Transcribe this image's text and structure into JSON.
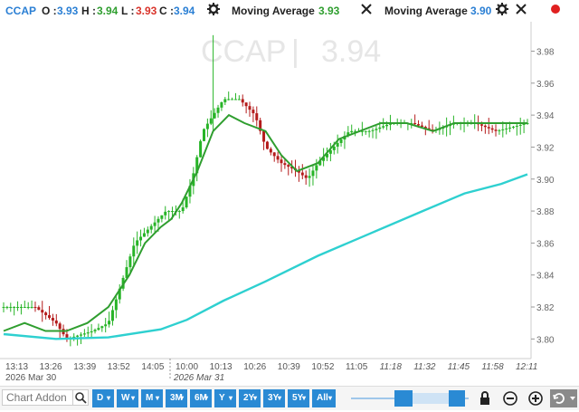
{
  "header": {
    "symbol": "CCAP",
    "open_label": "O :",
    "open_value": "3.93",
    "high_label": "H :",
    "high_value": "3.94",
    "low_label": "L :",
    "low_value": "3.93",
    "close_label": "C :",
    "close_value": "3.94",
    "indicator1_name": "Moving Average",
    "indicator1_value": "3.93",
    "indicator2_name": "Moving Average",
    "indicator2_value": "3.90"
  },
  "watermark": {
    "symbol": "CCAP",
    "separator": "|",
    "price": "3.94"
  },
  "chart_data": {
    "type": "candlestick",
    "y_ticks": [
      "3.98",
      "3.96",
      "3.94",
      "3.92",
      "3.90",
      "3.88",
      "3.86",
      "3.84",
      "3.82",
      "3.80"
    ],
    "ylim": [
      3.79,
      3.995
    ],
    "x_ticks": [
      "13:13",
      "13:26",
      "13:39",
      "13:52",
      "14:05",
      "10:00",
      "10:13",
      "10:26",
      "10:39",
      "10:52",
      "11:05",
      "11:18",
      "11:32",
      "11:45",
      "11:58",
      "12:11"
    ],
    "date_labels": [
      "2026 Mar 30",
      "2026 Mar 31"
    ],
    "price_path": [
      [
        0,
        3.82
      ],
      [
        0.06,
        3.82
      ],
      [
        0.1,
        3.81
      ],
      [
        0.12,
        3.8
      ],
      [
        0.17,
        3.805
      ],
      [
        0.2,
        3.81
      ],
      [
        0.22,
        3.83
      ],
      [
        0.25,
        3.86
      ],
      [
        0.28,
        3.87
      ],
      [
        0.31,
        3.88
      ],
      [
        0.34,
        3.88
      ],
      [
        0.36,
        3.9
      ],
      [
        0.38,
        3.93
      ],
      [
        0.4,
        3.94
      ],
      [
        0.42,
        3.95
      ],
      [
        0.45,
        3.95
      ],
      [
        0.48,
        3.94
      ],
      [
        0.5,
        3.92
      ],
      [
        0.53,
        3.91
      ],
      [
        0.56,
        3.905
      ],
      [
        0.58,
        3.9
      ],
      [
        0.6,
        3.91
      ],
      [
        0.63,
        3.92
      ],
      [
        0.66,
        3.93
      ],
      [
        0.7,
        3.93
      ],
      [
        0.74,
        3.935
      ],
      [
        0.78,
        3.935
      ],
      [
        0.82,
        3.93
      ],
      [
        0.86,
        3.935
      ],
      [
        0.9,
        3.935
      ],
      [
        0.94,
        3.93
      ],
      [
        1,
        3.935
      ]
    ],
    "ma_fast": [
      [
        0,
        3.805
      ],
      [
        0.04,
        3.81
      ],
      [
        0.08,
        3.805
      ],
      [
        0.12,
        3.805
      ],
      [
        0.16,
        3.81
      ],
      [
        0.2,
        3.82
      ],
      [
        0.24,
        3.84
      ],
      [
        0.27,
        3.86
      ],
      [
        0.3,
        3.87
      ],
      [
        0.32,
        3.875
      ],
      [
        0.34,
        3.885
      ],
      [
        0.37,
        3.905
      ],
      [
        0.4,
        3.93
      ],
      [
        0.43,
        3.94
      ],
      [
        0.46,
        3.935
      ],
      [
        0.5,
        3.93
      ],
      [
        0.53,
        3.915
      ],
      [
        0.56,
        3.905
      ],
      [
        0.6,
        3.91
      ],
      [
        0.64,
        3.925
      ],
      [
        0.68,
        3.93
      ],
      [
        0.72,
        3.935
      ],
      [
        0.77,
        3.935
      ],
      [
        0.82,
        3.93
      ],
      [
        0.86,
        3.935
      ],
      [
        0.9,
        3.935
      ],
      [
        0.94,
        3.935
      ],
      [
        1,
        3.935
      ]
    ],
    "ma_slow": [
      [
        0,
        3.803
      ],
      [
        0.1,
        3.8
      ],
      [
        0.2,
        3.801
      ],
      [
        0.3,
        3.806
      ],
      [
        0.35,
        3.812
      ],
      [
        0.42,
        3.824
      ],
      [
        0.5,
        3.836
      ],
      [
        0.6,
        3.852
      ],
      [
        0.7,
        3.866
      ],
      [
        0.8,
        3.88
      ],
      [
        0.88,
        3.891
      ],
      [
        0.95,
        3.897
      ],
      [
        1,
        3.903
      ]
    ]
  },
  "toolbar": {
    "addon_placeholder": "Chart Addon",
    "periods": [
      {
        "label": "D"
      },
      {
        "label": "W"
      },
      {
        "label": "M"
      },
      {
        "label": "3M"
      },
      {
        "label": "6M"
      },
      {
        "label": "Y"
      },
      {
        "label": "2Y"
      },
      {
        "label": "3Y"
      },
      {
        "label": "5Y"
      },
      {
        "label": "All"
      }
    ]
  },
  "colors": {
    "accent": "#2a8ad4",
    "up": "#27b427",
    "down": "#b41b1b",
    "ma_fast": "#2f9e2f",
    "ma_slow": "#2ed0d0"
  }
}
